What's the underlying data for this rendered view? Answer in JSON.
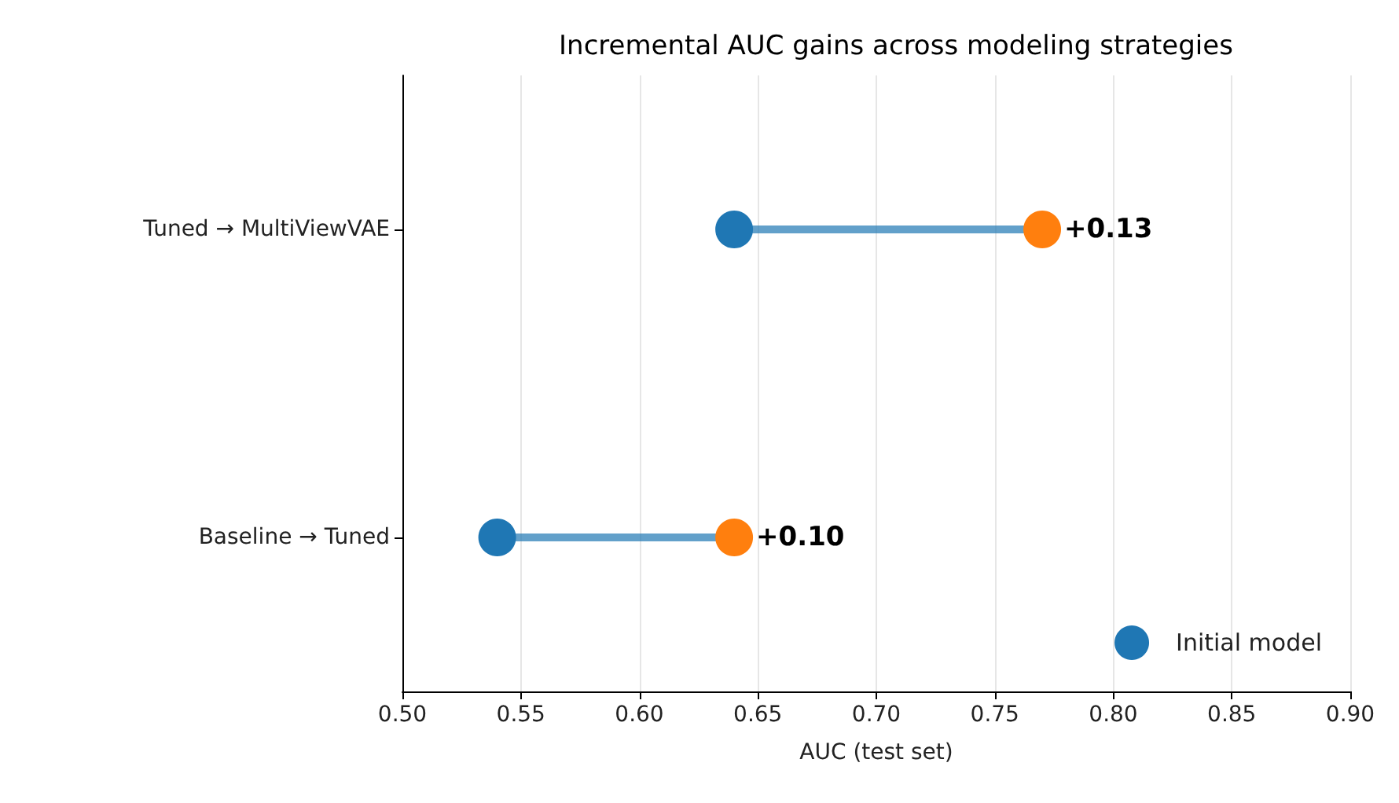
{
  "chart_data": {
    "type": "lollipop",
    "orientation": "horizontal",
    "title": "Incremental AUC gains across modeling strategies",
    "xlabel": "AUC (test set)",
    "categories": [
      "Tuned → MultiViewVAE",
      "Baseline → Tuned"
    ],
    "series": [
      {
        "type": "scatter",
        "name": "Initial model",
        "color": "#1f77b4",
        "values": [
          0.64,
          0.54
        ]
      },
      {
        "type": "scatter",
        "color": "#ff7f0e",
        "values": [
          0.77,
          0.64
        ]
      }
    ],
    "annotations": [
      {
        "text": "+0.13",
        "x": 0.77,
        "y": "Tuned → MultiViewVAE"
      },
      {
        "text": "+0.10",
        "x": 0.64,
        "y": "Baseline → Tuned"
      }
    ],
    "xlim": [
      0.5,
      0.9
    ],
    "xticks": [
      {
        "value": 0.5,
        "label": "0.50"
      },
      {
        "value": 0.55,
        "label": "0.55"
      },
      {
        "value": 0.6,
        "label": "0.60"
      },
      {
        "value": 0.65,
        "label": "0.65"
      },
      {
        "value": 0.7,
        "label": "0.70"
      },
      {
        "value": 0.75,
        "label": "0.75"
      },
      {
        "value": 0.8,
        "label": "0.80"
      },
      {
        "value": 0.85,
        "label": "0.85"
      },
      {
        "value": 0.9,
        "label": "0.90"
      }
    ],
    "grid": "x",
    "legend": "bottom right",
    "marker": "circle"
  }
}
